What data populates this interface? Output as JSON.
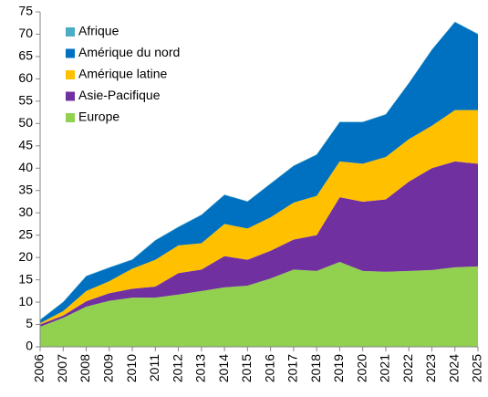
{
  "chart_data": {
    "type": "stacked_area",
    "x": [
      2006,
      2007,
      2008,
      2009,
      2010,
      2011,
      2012,
      2013,
      2014,
      2015,
      2016,
      2017,
      2018,
      2019,
      2020,
      2021,
      2022,
      2023,
      2024,
      2025
    ],
    "series": [
      {
        "name": "Afrique",
        "color": "#4bacc6",
        "values": [
          0.1,
          0.1,
          0.1,
          0.1,
          0.1,
          0.1,
          0.1,
          0.1,
          0.1,
          0.1,
          0.1,
          0.1,
          0.1,
          0.1,
          0.1,
          0.1,
          0.1,
          0.1,
          0.1,
          0.1
        ]
      },
      {
        "name": "Amérique du nord",
        "color": "#0070c0",
        "values": [
          0.7,
          2,
          3.3,
          3,
          2,
          4.3,
          4.1,
          6.3,
          6.5,
          6,
          7.5,
          8.2,
          9.2,
          8.8,
          9.3,
          9.5,
          12.5,
          17,
          19.7,
          17
        ]
      },
      {
        "name": "Amérique latine",
        "color": "#ffc000",
        "values": [
          0.3,
          1,
          2.3,
          2.7,
          4.5,
          6,
          6.2,
          5.9,
          7.2,
          7,
          7.5,
          8.3,
          8.8,
          8,
          8.5,
          9.5,
          9.5,
          9.5,
          11.5,
          12
        ]
      },
      {
        "name": "Asie-Pacifique",
        "color": "#7030a0",
        "values": [
          0.5,
          0.5,
          1.2,
          1.7,
          2,
          2.5,
          4.8,
          4.8,
          7,
          5.8,
          6.2,
          6.7,
          8,
          14.5,
          15.5,
          16.2,
          20,
          22.8,
          23.7,
          23
        ]
      },
      {
        "name": "Europe",
        "color": "#92d050",
        "values": [
          4.5,
          6.5,
          9,
          10.3,
          11,
          11,
          11.7,
          12.5,
          13.3,
          13.7,
          15.3,
          17.3,
          17,
          19,
          17,
          16.8,
          17,
          17.2,
          17.8,
          18
        ]
      }
    ],
    "ylim": [
      0,
      75
    ],
    "yticks": [
      0,
      5,
      10,
      15,
      20,
      25,
      30,
      35,
      40,
      45,
      50,
      55,
      60,
      65,
      70,
      75
    ],
    "legend": "top-left"
  }
}
